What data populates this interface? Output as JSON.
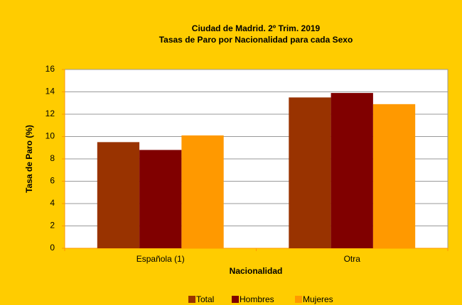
{
  "chart_data": {
    "type": "bar",
    "title": "Ciudad de Madrid. 2º Trim. 2019",
    "subtitle": "Tasas de Paro por Nacionalidad para cada Sexo",
    "y_label": "Tasa de Paro (%)",
    "x_label": "Nacionalidad",
    "categories": [
      "Española (1)",
      "Otra"
    ],
    "series": [
      {
        "name": "Total",
        "color": "#993300",
        "values": [
          9.5,
          13.5
        ]
      },
      {
        "name": "Hombres",
        "color": "#800000",
        "values": [
          8.8,
          13.9
        ]
      },
      {
        "name": "Mujeres",
        "color": "#ff9900",
        "values": [
          10.1,
          12.9
        ]
      }
    ],
    "ylim": [
      0,
      16
    ],
    "yticks": [
      0,
      2,
      4,
      6,
      8,
      10,
      12,
      14,
      16
    ],
    "grid": true,
    "legend": "bottom"
  }
}
